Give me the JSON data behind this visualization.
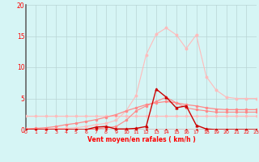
{
  "x": [
    0,
    1,
    2,
    3,
    4,
    5,
    6,
    7,
    8,
    9,
    10,
    11,
    12,
    13,
    14,
    15,
    16,
    17,
    18,
    19,
    20,
    21,
    22,
    23
  ],
  "series1_flat": [
    2.2,
    2.2,
    2.2,
    2.2,
    2.2,
    2.2,
    2.2,
    2.2,
    2.2,
    2.2,
    2.2,
    2.2,
    2.2,
    2.2,
    2.2,
    2.2,
    2.2,
    2.2,
    2.2,
    2.2,
    2.2,
    2.2,
    2.2,
    2.2
  ],
  "series2_bigpeak": [
    0.1,
    0.1,
    0.1,
    0.2,
    0.2,
    0.3,
    0.5,
    0.8,
    1.0,
    1.5,
    3.0,
    5.5,
    12.0,
    15.3,
    16.3,
    15.2,
    13.0,
    15.2,
    8.5,
    6.3,
    5.2,
    5.0,
    5.0,
    5.0
  ],
  "series3_ramp": [
    0.1,
    0.2,
    0.3,
    0.5,
    0.8,
    1.0,
    1.3,
    1.6,
    2.0,
    2.4,
    3.0,
    3.5,
    4.0,
    4.3,
    4.5,
    4.3,
    4.0,
    3.8,
    3.5,
    3.3,
    3.2,
    3.2,
    3.2,
    3.2
  ],
  "series4_medpeak": [
    0.0,
    0.0,
    0.0,
    0.0,
    0.0,
    0.0,
    0.0,
    0.1,
    0.3,
    0.5,
    1.5,
    3.0,
    3.8,
    4.5,
    5.2,
    4.3,
    3.5,
    3.2,
    3.0,
    2.8,
    2.8,
    2.8,
    2.8,
    2.8
  ],
  "series5_sharpeak": [
    0.0,
    0.0,
    0.0,
    0.0,
    0.0,
    0.0,
    0.0,
    0.4,
    0.5,
    0.1,
    0.1,
    0.2,
    0.5,
    6.5,
    5.2,
    3.5,
    3.8,
    0.7,
    0.1,
    0.0,
    0.0,
    0.0,
    0.0,
    0.0
  ],
  "series6_bottom": [
    0.0,
    0.0,
    0.0,
    0.0,
    0.0,
    0.0,
    0.0,
    0.0,
    0.0,
    0.0,
    0.0,
    0.0,
    0.0,
    0.0,
    0.0,
    0.0,
    0.0,
    0.0,
    0.0,
    0.0,
    0.0,
    0.0,
    0.0,
    0.0
  ],
  "bg_color": "#d6f5f5",
  "grid_color": "#b8d4d4",
  "color_light_pink": "#ffbbbb",
  "color_med_pink": "#ff8888",
  "color_dark_red": "#cc0000",
  "color_bottom_red": "#dd0000",
  "xlabel": "Vent moyen/en rafales ( km/h )",
  "ylim": [
    0,
    20
  ],
  "xlim": [
    0,
    23
  ],
  "yticks": [
    0,
    5,
    10,
    15,
    20
  ],
  "xticks": [
    0,
    1,
    2,
    3,
    4,
    5,
    6,
    7,
    8,
    9,
    10,
    11,
    12,
    13,
    14,
    15,
    16,
    17,
    18,
    19,
    20,
    21,
    22,
    23
  ]
}
